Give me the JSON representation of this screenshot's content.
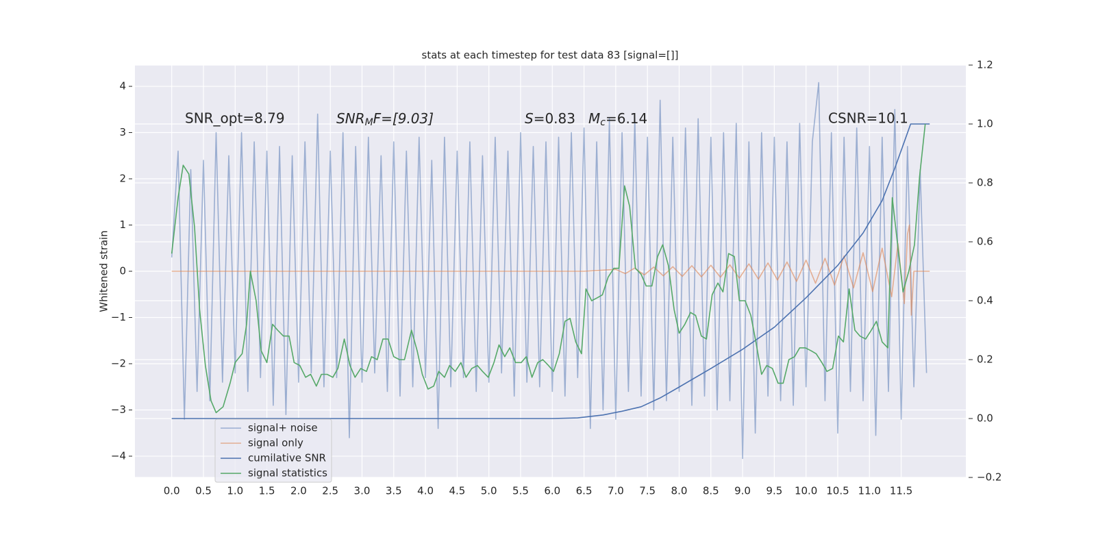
{
  "chart_data": {
    "type": "line",
    "title": "stats at each timestep for test data 83 [signal=[]]",
    "ylabel": "Whitened strain",
    "annotations": {
      "snr_opt": "SNR_opt=8.79",
      "snr_mf": [
        "SNR",
        "M",
        "F=[9.03]"
      ],
      "s": [
        "S",
        "=0.83"
      ],
      "mc": [
        "M",
        "c",
        "=6.14"
      ],
      "csnr": "CSNR=10.1"
    },
    "xlim": [
      -0.58,
      12.52
    ],
    "ylim": [
      -4.46,
      4.46
    ],
    "y2lim": [
      -0.2,
      1.2
    ],
    "xticks": [
      {
        "value": 0,
        "label": "0.0"
      },
      0.5,
      {
        "value": 1,
        "label": "1.0"
      },
      1.5,
      {
        "value": 2,
        "label": "2.0"
      },
      2.5,
      {
        "value": 3,
        "label": "3.0"
      },
      3.5,
      {
        "value": 4,
        "label": "4.0"
      },
      4.5,
      {
        "value": 5,
        "label": "5.0"
      },
      5.5,
      {
        "value": 6,
        "label": "6.0"
      },
      6.5,
      {
        "value": 7,
        "label": "7.0"
      },
      7.5,
      {
        "value": 8,
        "label": "8.0"
      },
      8.5,
      {
        "value": 9,
        "label": "9.0"
      },
      9.5,
      {
        "value": 10,
        "label": "10.0"
      },
      10.5,
      {
        "value": 11,
        "label": "11.0"
      },
      11.5
    ],
    "yticks": [
      {
        "value": -4,
        "label": "−4"
      },
      {
        "value": -3,
        "label": "−3"
      },
      {
        "value": -2,
        "label": "−2"
      },
      {
        "value": -1,
        "label": "−1"
      },
      0,
      1,
      2,
      3,
      4
    ],
    "y2ticks": [
      {
        "value": -0.2,
        "label": "−0.2"
      },
      {
        "value": 0,
        "label": "0.0"
      },
      0.2,
      0.4,
      0.6,
      0.8,
      {
        "value": 1,
        "label": "1.0"
      },
      1.2
    ],
    "grid": true,
    "legend": "lower left",
    "series": [
      {
        "name": "signal+ noise",
        "color": "#4c72b0",
        "opacity": 0.5,
        "x": [
          0,
          0.1,
          0.2,
          0.3,
          0.4,
          0.5,
          0.6,
          0.7,
          0.8,
          0.9,
          1,
          1.1,
          1.2,
          1.3,
          1.4,
          1.5,
          1.6,
          1.7,
          1.8,
          1.9,
          2,
          2.1,
          2.2,
          2.3,
          2.4,
          2.5,
          2.6,
          2.7,
          2.8,
          2.9,
          3,
          3.1,
          3.2,
          3.3,
          3.4,
          3.5,
          3.6,
          3.7,
          3.8,
          3.9,
          4,
          4.1,
          4.2,
          4.3,
          4.4,
          4.5,
          4.6,
          4.7,
          4.8,
          4.9,
          5,
          5.1,
          5.2,
          5.3,
          5.4,
          5.5,
          5.6,
          5.7,
          5.8,
          5.9,
          6,
          6.1,
          6.2,
          6.3,
          6.4,
          6.5,
          6.6,
          6.7,
          6.8,
          6.9,
          7,
          7.1,
          7.2,
          7.3,
          7.4,
          7.5,
          7.6,
          7.7,
          7.8,
          7.9,
          8,
          8.1,
          8.2,
          8.3,
          8.4,
          8.5,
          8.6,
          8.7,
          8.8,
          8.9,
          9,
          9.1,
          9.2,
          9.3,
          9.4,
          9.5,
          9.6,
          9.7,
          9.8,
          9.9,
          10,
          10.1,
          10.2,
          10.3,
          10.4,
          10.5,
          10.6,
          10.7,
          10.8,
          10.9,
          11,
          11.1,
          11.2,
          11.3,
          11.4,
          11.5,
          11.6,
          11.7,
          11.8,
          11.9
        ],
        "values": [
          0.3,
          2.6,
          -3.2,
          2.2,
          -2.6,
          2.4,
          -2.8,
          3.0,
          -2.4,
          2.5,
          -2.2,
          3.0,
          -2.6,
          2.8,
          -2.3,
          2.6,
          -2.9,
          2.7,
          -3.1,
          2.5,
          -2.4,
          2.8,
          -2.2,
          3.4,
          -2.5,
          2.6,
          -2.3,
          3.0,
          -3.6,
          2.7,
          -2.4,
          2.9,
          -2.2,
          2.5,
          -2.6,
          2.8,
          -2.7,
          2.6,
          -2.5,
          2.9,
          -2.3,
          2.4,
          -3.4,
          2.9,
          -2.5,
          2.6,
          -2.3,
          2.8,
          -2.6,
          2.5,
          -2.4,
          2.9,
          -2.2,
          2.6,
          -2.7,
          3.0,
          -2.4,
          2.7,
          -2.5,
          2.8,
          -2.6,
          2.9,
          -2.7,
          3.0,
          -2.3,
          3.1,
          -3.4,
          2.8,
          -3.0,
          3.3,
          -3.2,
          3.0,
          -2.6,
          3.3,
          -2.7,
          2.9,
          -3.0,
          3.7,
          -2.8,
          2.9,
          -2.6,
          3.1,
          -2.9,
          3.3,
          -2.7,
          2.9,
          -3.0,
          3.0,
          -2.8,
          3.2,
          -4.05,
          2.8,
          -3.5,
          3.0,
          -2.7,
          2.9,
          -2.8,
          2.8,
          -2.9,
          3.2,
          -2.5,
          2.8,
          4.08,
          -2.8,
          3.0,
          -3.5,
          2.9,
          -2.6,
          3.1,
          -2.8,
          2.7,
          -3.55,
          2.9,
          -2.6,
          3.5,
          -3.2,
          2.7,
          -2.5,
          2.2,
          -2.2
        ]
      },
      {
        "name": "signal only",
        "color": "#dd8452",
        "opacity": 0.6,
        "x": [
          0,
          6.5,
          7.0,
          7.15,
          7.3,
          7.45,
          7.6,
          7.75,
          7.9,
          8.05,
          8.2,
          8.35,
          8.5,
          8.65,
          8.8,
          8.95,
          9.1,
          9.25,
          9.4,
          9.55,
          9.7,
          9.85,
          10,
          10.15,
          10.3,
          10.45,
          10.6,
          10.75,
          10.9,
          11.05,
          11.2,
          11.35,
          11.45,
          11.55,
          11.6,
          11.63,
          11.66,
          11.7,
          11.95
        ],
        "values": [
          0,
          0,
          0.04,
          -0.05,
          0.07,
          -0.08,
          0.09,
          -0.1,
          0.1,
          -0.11,
          0.12,
          -0.12,
          0.13,
          -0.13,
          0.14,
          -0.15,
          0.16,
          -0.17,
          0.18,
          -0.19,
          0.2,
          -0.22,
          0.24,
          -0.26,
          0.28,
          -0.3,
          0.33,
          -0.36,
          0.4,
          -0.44,
          0.5,
          -0.55,
          0.6,
          -0.7,
          0.8,
          1.0,
          -0.95,
          0,
          0
        ]
      },
      {
        "name": "cumilative SNR",
        "color": "#4c72b0",
        "axis": "y2",
        "x": [
          0,
          6.0,
          6.4,
          6.8,
          7.1,
          7.4,
          7.7,
          8.0,
          8.5,
          9.0,
          9.5,
          10.0,
          10.5,
          10.9,
          11.2,
          11.4,
          11.55,
          11.65,
          11.95
        ],
        "values": [
          0,
          0,
          0.002,
          0.012,
          0.025,
          0.04,
          0.07,
          0.107,
          0.17,
          0.235,
          0.31,
          0.41,
          0.52,
          0.63,
          0.74,
          0.85,
          0.94,
          1.0,
          1.0
        ]
      },
      {
        "name": "signal statistics",
        "color": "#55a868",
        "axis": "y2",
        "x": [
          0,
          0.1,
          0.18,
          0.27,
          0.36,
          0.44,
          0.53,
          0.62,
          0.7,
          0.81,
          0.92,
          1.0,
          1.11,
          1.18,
          1.24,
          1.33,
          1.41,
          1.5,
          1.59,
          1.67,
          1.76,
          1.85,
          1.93,
          2.02,
          2.11,
          2.19,
          2.28,
          2.36,
          2.45,
          2.54,
          2.62,
          2.72,
          2.81,
          2.89,
          2.98,
          3.07,
          3.15,
          3.24,
          3.33,
          3.41,
          3.5,
          3.59,
          3.67,
          3.78,
          3.87,
          3.95,
          4.04,
          4.13,
          4.21,
          4.3,
          4.38,
          4.47,
          4.56,
          4.64,
          4.73,
          4.82,
          4.9,
          4.99,
          5.08,
          5.16,
          5.25,
          5.33,
          5.42,
          5.51,
          5.59,
          5.68,
          5.77,
          5.85,
          5.94,
          6.02,
          6.11,
          6.2,
          6.28,
          6.37,
          6.46,
          6.53,
          6.62,
          6.71,
          6.79,
          6.88,
          6.97,
          7.05,
          7.14,
          7.22,
          7.31,
          7.4,
          7.48,
          7.57,
          7.66,
          7.74,
          7.83,
          7.92,
          8.0,
          8.09,
          8.18,
          8.26,
          8.35,
          8.43,
          8.52,
          8.61,
          8.69,
          8.78,
          8.87,
          8.95,
          9.04,
          9.13,
          9.21,
          9.3,
          9.38,
          9.47,
          9.56,
          9.64,
          9.73,
          9.82,
          9.9,
          9.99,
          10.08,
          10.16,
          10.25,
          10.33,
          10.42,
          10.51,
          10.59,
          10.68,
          10.77,
          10.85,
          10.94,
          11.03,
          11.11,
          11.2,
          11.29,
          11.36,
          11.45,
          11.53,
          11.62,
          11.71,
          11.79,
          11.88
        ],
        "values": [
          0.56,
          0.75,
          0.86,
          0.83,
          0.65,
          0.37,
          0.18,
          0.06,
          0.02,
          0.04,
          0.12,
          0.19,
          0.22,
          0.32,
          0.5,
          0.4,
          0.23,
          0.19,
          0.32,
          0.3,
          0.28,
          0.28,
          0.19,
          0.18,
          0.14,
          0.15,
          0.11,
          0.15,
          0.15,
          0.14,
          0.17,
          0.27,
          0.18,
          0.14,
          0.17,
          0.16,
          0.21,
          0.2,
          0.27,
          0.27,
          0.21,
          0.2,
          0.2,
          0.3,
          0.23,
          0.15,
          0.1,
          0.11,
          0.16,
          0.14,
          0.18,
          0.16,
          0.19,
          0.14,
          0.17,
          0.18,
          0.16,
          0.14,
          0.19,
          0.25,
          0.21,
          0.24,
          0.19,
          0.19,
          0.21,
          0.14,
          0.19,
          0.2,
          0.18,
          0.16,
          0.22,
          0.33,
          0.34,
          0.26,
          0.22,
          0.44,
          0.4,
          0.41,
          0.42,
          0.48,
          0.51,
          0.51,
          0.79,
          0.72,
          0.51,
          0.49,
          0.45,
          0.45,
          0.55,
          0.59,
          0.52,
          0.37,
          0.29,
          0.32,
          0.36,
          0.35,
          0.28,
          0.27,
          0.42,
          0.46,
          0.43,
          0.56,
          0.55,
          0.4,
          0.4,
          0.35,
          0.26,
          0.15,
          0.18,
          0.17,
          0.12,
          0.12,
          0.2,
          0.21,
          0.24,
          0.24,
          0.23,
          0.22,
          0.19,
          0.16,
          0.17,
          0.28,
          0.26,
          0.44,
          0.3,
          0.28,
          0.27,
          0.3,
          0.33,
          0.26,
          0.24,
          0.75,
          0.58,
          0.43,
          0.5,
          0.59,
          0.82,
          1.0
        ]
      }
    ]
  }
}
